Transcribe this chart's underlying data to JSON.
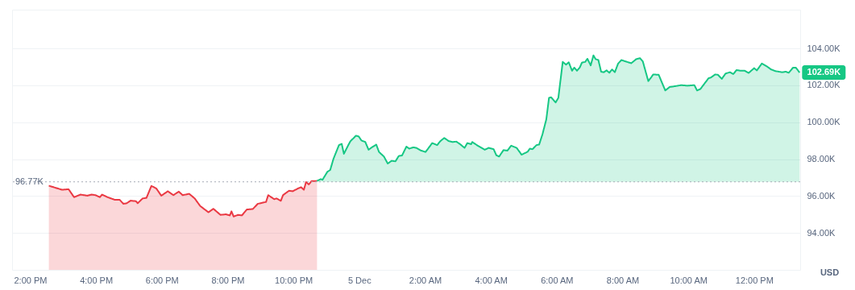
{
  "chart_data": {
    "type": "area",
    "ylabel": "USD",
    "grid": "y",
    "xlim": [
      "--12-04T13:27",
      "--12-05T13:24"
    ],
    "ylim": [
      92,
      106.1
    ],
    "xticks": [
      {
        "value": "--12-04T14:00",
        "label": "2:00 PM"
      },
      {
        "value": "--12-04T16:00",
        "label": "4:00 PM"
      },
      {
        "value": "--12-04T18:00",
        "label": "6:00 PM"
      },
      {
        "value": "--12-04T20:00",
        "label": "8:00 PM"
      },
      {
        "value": "--12-04T22:00",
        "label": "10:00 PM"
      },
      {
        "value": "--12-05T00:00",
        "label": "5 Dec"
      },
      {
        "value": "--12-05T02:00",
        "label": "2:00 AM"
      },
      {
        "value": "--12-05T04:00",
        "label": "4:00 AM"
      },
      {
        "value": "--12-05T06:00",
        "label": "6:00 AM"
      },
      {
        "value": "--12-05T08:00",
        "label": "8:00 AM"
      },
      {
        "value": "--12-05T10:00",
        "label": "10:00 AM"
      },
      {
        "value": "--12-05T12:00",
        "label": "12:00 PM"
      }
    ],
    "yticks": [
      {
        "value": 94,
        "label": "94.00K"
      },
      {
        "value": 96,
        "label": "96.00K"
      },
      {
        "value": 98,
        "label": "98.00K"
      },
      {
        "value": 100,
        "label": "100.00K"
      },
      {
        "value": 102,
        "label": "102.00K"
      },
      {
        "value": 104,
        "label": "104.00K"
      }
    ],
    "ref_lines": [
      {
        "axis": "y",
        "value": 96.77,
        "label": "96.77K",
        "color": "#a6abb5",
        "line_style": "dotted"
      }
    ],
    "annotations": [
      {
        "text": "102.69K",
        "x": "--12-05T13:23",
        "y": 102.69
      }
    ],
    "series": [
      {
        "color": "#ea3943",
        "x": [
          "--12-04T14:34",
          "--12-04T14:58",
          "--12-04T15:10",
          "--12-04T15:20",
          "--12-04T15:32",
          "--12-04T15:44",
          "--12-04T15:52",
          "--12-04T15:59",
          "--12-04T16:07",
          "--12-04T16:11",
          "--12-04T16:21",
          "--12-04T16:34",
          "--12-04T16:43",
          "--12-04T16:50",
          "--12-04T16:56",
          "--12-04T17:03",
          "--12-04T17:13",
          "--12-04T17:16",
          "--12-04T17:25",
          "--12-04T17:32",
          "--12-04T17:41",
          "--12-04T17:50",
          "--12-04T17:59",
          "--12-04T18:11",
          "--12-04T18:21",
          "--12-04T18:31",
          "--12-04T18:38",
          "--12-04T18:50",
          "--12-04T19:00",
          "--12-04T19:10",
          "--12-04T19:25",
          "--12-04T19:34",
          "--12-04T19:47",
          "--12-04T19:57",
          "--12-04T20:04",
          "--12-04T20:07",
          "--12-04T20:11",
          "--12-04T20:19",
          "--12-04T20:26",
          "--12-04T20:35",
          "--12-04T20:46",
          "--12-04T20:55",
          "--12-04T21:10",
          "--12-04T21:14",
          "--12-04T21:25",
          "--12-04T21:29",
          "--12-04T21:37",
          "--12-04T21:41",
          "--12-04T21:52",
          "--12-04T21:59",
          "--12-04T22:08",
          "--12-04T22:14",
          "--12-04T22:19",
          "--12-04T22:23",
          "--12-04T22:28",
          "--12-04T22:33",
          "--12-04T22:43"
        ],
        "values": [
          96.56,
          96.34,
          96.37,
          95.94,
          96.08,
          96.02,
          96.08,
          96.05,
          95.94,
          96.08,
          95.94,
          95.8,
          95.8,
          95.58,
          95.61,
          95.75,
          95.72,
          95.61,
          95.87,
          95.9,
          96.55,
          96.41,
          96.02,
          96.26,
          96.05,
          96.24,
          96.05,
          96.12,
          95.87,
          95.46,
          95.12,
          95.31,
          94.98,
          95.01,
          94.95,
          95.17,
          94.89,
          94.98,
          94.95,
          95.27,
          95.3,
          95.58,
          95.68,
          96.05,
          95.83,
          95.87,
          95.74,
          96.05,
          96.29,
          96.26,
          96.41,
          96.48,
          96.34,
          96.76,
          96.63,
          96.81,
          96.82
        ]
      },
      {
        "color": "#16c784",
        "x": [
          "--12-04T22:43",
          "--12-04T22:50",
          "--12-04T22:53",
          "--12-04T23:02",
          "--12-04T23:07",
          "--12-04T23:13",
          "--12-04T23:23",
          "--12-04T23:28",
          "--12-04T23:32",
          "--12-04T23:40",
          "--12-04T23:44",
          "--12-04T23:49",
          "--12-04T23:54",
          "--12-04T23:59",
          "--12-05T00:04",
          "--12-05T00:11",
          "--12-05T00:17",
          "--12-05T00:23",
          "--12-05T00:31",
          "--12-05T00:36",
          "--12-05T00:45",
          "--12-05T00:52",
          "--12-05T00:59",
          "--12-05T01:06",
          "--12-05T01:12",
          "--12-05T01:18",
          "--12-05T01:26",
          "--12-05T01:31",
          "--12-05T01:39",
          "--12-05T01:44",
          "--12-05T01:53",
          "--12-05T02:01",
          "--12-05T02:13",
          "--12-05T02:22",
          "--12-05T02:28",
          "--12-05T02:35",
          "--12-05T02:43",
          "--12-05T02:50",
          "--12-05T02:57",
          "--12-05T03:04",
          "--12-05T03:12",
          "--12-05T03:17",
          "--12-05T03:24",
          "--12-05T03:26",
          "--12-05T03:36",
          "--12-05T03:49",
          "--12-05T03:56",
          "--12-05T04:05",
          "--12-05T04:10",
          "--12-05T04:15",
          "--12-05T04:23",
          "--12-05T04:30",
          "--12-05T04:37",
          "--12-05T04:47",
          "--12-05T04:56",
          "--12-05T05:07",
          "--12-05T05:11",
          "--12-05T05:16",
          "--12-05T05:23",
          "--12-05T05:28",
          "--12-05T05:34",
          "--12-05T05:41",
          "--12-05T05:46",
          "--12-05T05:50",
          "--12-05T05:58",
          "--12-05T06:03",
          "--12-05T06:11",
          "--12-05T06:17",
          "--12-05T06:22",
          "--12-05T06:28",
          "--12-05T06:32",
          "--12-05T06:37",
          "--12-05T06:42",
          "--12-05T06:46",
          "--12-05T06:52",
          "--12-05T06:56",
          "--12-05T07:02",
          "--12-05T07:07",
          "--12-05T07:11",
          "--12-05T07:16",
          "--12-05T07:21",
          "--12-05T07:26",
          "--12-05T07:31",
          "--12-05T07:36",
          "--12-05T07:41",
          "--12-05T07:46",
          "--12-05T07:52",
          "--12-05T07:58",
          "--12-05T08:05",
          "--12-05T08:16",
          "--12-05T08:25",
          "--12-05T08:32",
          "--12-05T08:37",
          "--12-05T08:47",
          "--12-05T08:52",
          "--12-05T08:56",
          "--12-05T09:06",
          "--12-05T09:18",
          "--12-05T09:26",
          "--12-05T09:33",
          "--12-05T09:47",
          "--12-05T09:58",
          "--12-05T10:11",
          "--12-05T10:16",
          "--12-05T10:22",
          "--12-05T10:37",
          "--12-05T10:41",
          "--12-05T10:49",
          "--12-05T10:54",
          "--12-05T11:01",
          "--12-05T11:08",
          "--12-05T11:16",
          "--12-05T11:22",
          "--12-05T11:28",
          "--12-05T11:35",
          "--12-05T11:43",
          "--12-05T11:50",
          "--12-05T12:00",
          "--12-05T12:05",
          "--12-05T12:14",
          "--12-05T12:24",
          "--12-05T12:31",
          "--12-05T12:39",
          "--12-05T12:51",
          "--12-05T12:58",
          "--12-05T13:03",
          "--12-05T13:11",
          "--12-05T13:16",
          "--12-05T13:23"
        ],
        "values": [
          96.82,
          96.92,
          96.88,
          97.32,
          97.41,
          98.02,
          98.76,
          98.83,
          98.29,
          98.76,
          98.98,
          99.12,
          99.27,
          99.23,
          99.01,
          98.93,
          98.51,
          98.64,
          98.79,
          98.39,
          98.14,
          97.76,
          97.91,
          97.88,
          98.17,
          98.2,
          98.68,
          98.57,
          98.64,
          98.61,
          98.46,
          98.39,
          98.87,
          98.76,
          98.98,
          99.15,
          98.98,
          98.93,
          98.95,
          98.81,
          98.61,
          98.87,
          98.81,
          98.93,
          98.73,
          98.51,
          98.61,
          98.54,
          98.21,
          98.14,
          98.49,
          98.46,
          98.73,
          98.61,
          98.24,
          98.4,
          98.57,
          98.54,
          98.76,
          98.79,
          99.34,
          100.15,
          101.32,
          101.35,
          101.07,
          101.32,
          103.27,
          103.12,
          103.25,
          102.79,
          102.96,
          102.79,
          102.96,
          103.23,
          103.27,
          103.44,
          103.08,
          103.62,
          103.42,
          103.37,
          102.74,
          102.71,
          102.81,
          102.68,
          102.86,
          102.71,
          103.18,
          103.37,
          103.3,
          103.2,
          103.42,
          103.47,
          103.3,
          102.23,
          102.42,
          102.59,
          102.57,
          101.72,
          101.91,
          101.94,
          102.01,
          101.98,
          102.01,
          101.72,
          101.8,
          102.39,
          102.42,
          102.59,
          102.57,
          102.35,
          102.64,
          102.71,
          102.61,
          102.83,
          102.79,
          102.79,
          102.67,
          102.93,
          102.81,
          103.18,
          103.01,
          102.86,
          102.77,
          102.71,
          102.74,
          102.68,
          102.96,
          102.96,
          102.69
        ]
      }
    ]
  }
}
